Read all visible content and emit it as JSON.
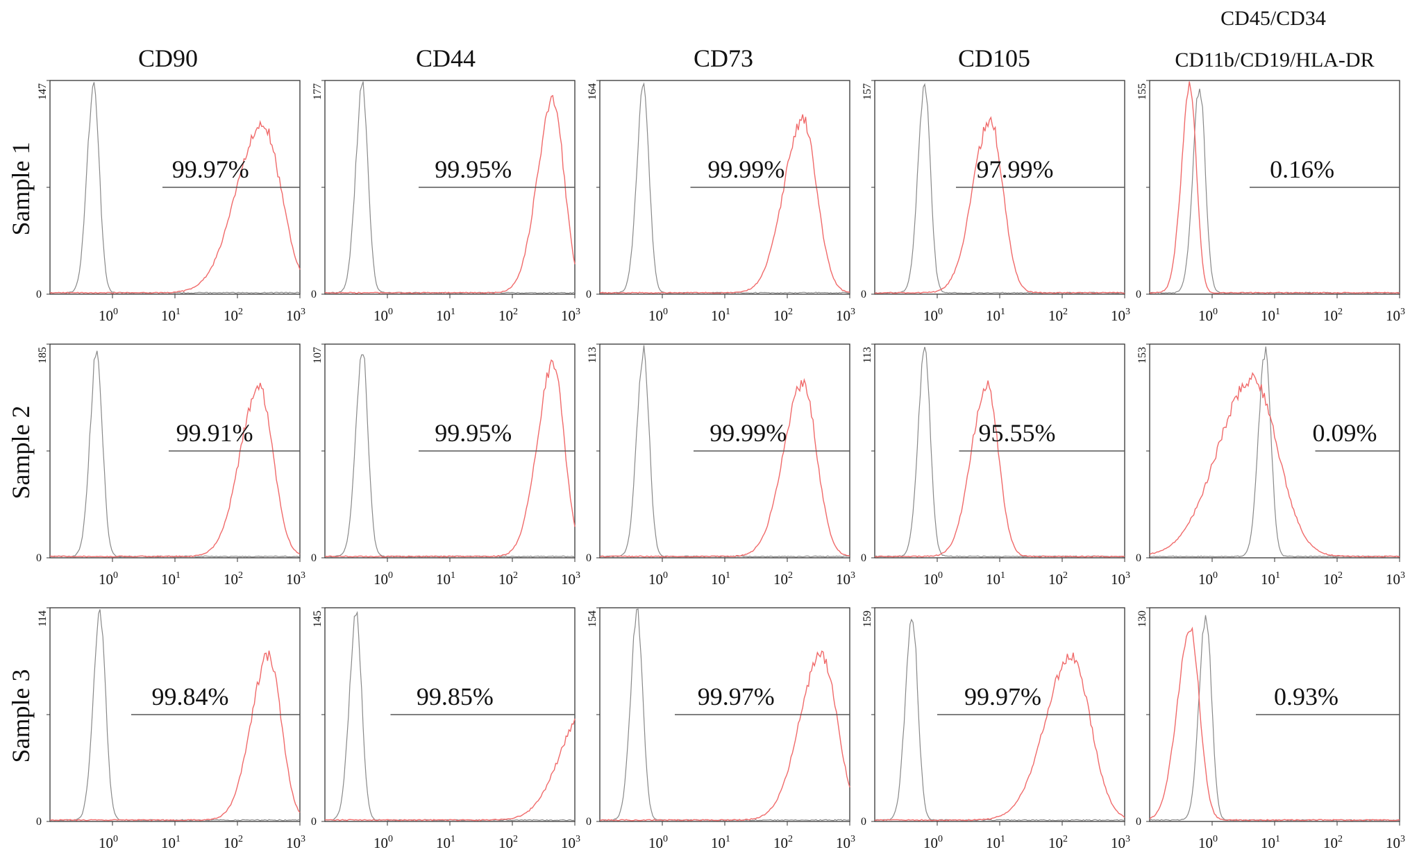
{
  "figure": {
    "column_titles": [
      "CD90",
      "CD44",
      "CD73",
      "CD105",
      [
        "CD45/CD34",
        "CD11b/CD19/HLA-DR"
      ]
    ],
    "row_labels": [
      "Sample 1",
      "Sample 2",
      "Sample 3"
    ],
    "colors": {
      "isotype_control": "#888888",
      "marker_stain": "#f06a6a",
      "gate_line": "#555555",
      "frame": "#333333"
    }
  },
  "chart_data": [
    {
      "type": "area",
      "row": "Sample 1",
      "column": "CD90",
      "ymax_label": "147",
      "yzero_label": "0",
      "x_scale": "log",
      "x_ticks": [
        "0",
        "1",
        "2",
        "3"
      ],
      "percent_positive": "99.97%",
      "control_peak_log10": -0.3,
      "stain_peak_log10": 2.4,
      "stain_width_log10": 0.3,
      "stain_height_frac": 0.82,
      "gate_start_log10": 0.8
    },
    {
      "type": "area",
      "row": "Sample 1",
      "column": "CD44",
      "ymax_label": "177",
      "yzero_label": "0",
      "x_scale": "log",
      "x_ticks": [
        "0",
        "1",
        "2",
        "3"
      ],
      "percent_positive": "99.95%",
      "control_peak_log10": -0.4,
      "stain_peak_log10": 2.65,
      "stain_width_log10": 0.18,
      "stain_height_frac": 0.93,
      "gate_start_log10": 0.5
    },
    {
      "type": "area",
      "row": "Sample 1",
      "column": "CD73",
      "ymax_label": "164",
      "yzero_label": "0",
      "x_scale": "log",
      "x_ticks": [
        "0",
        "1",
        "2",
        "3"
      ],
      "percent_positive": "99.99%",
      "control_peak_log10": -0.3,
      "stain_peak_log10": 2.25,
      "stain_width_log10": 0.22,
      "stain_height_frac": 0.84,
      "gate_start_log10": 0.45
    },
    {
      "type": "area",
      "row": "Sample 1",
      "column": "CD105",
      "ymax_label": "157",
      "yzero_label": "0",
      "x_scale": "log",
      "x_ticks": [
        "0",
        "1",
        "2",
        "3"
      ],
      "percent_positive": "97.99%",
      "control_peak_log10": -0.2,
      "stain_peak_log10": 0.85,
      "stain_width_log10": 0.2,
      "stain_height_frac": 0.84,
      "gate_start_log10": 0.3
    },
    {
      "type": "area",
      "row": "Sample 1",
      "column": "CD45/CD34/CD11b/CD19/HLA-DR",
      "ymax_label": "155",
      "yzero_label": "0",
      "x_scale": "log",
      "x_ticks": [
        "0",
        "1",
        "2",
        "3"
      ],
      "percent_positive": "0.16%",
      "control_peak_log10": -0.2,
      "stain_peak_log10": -0.35,
      "stain_width_log10": 0.1,
      "stain_height_frac": 1.0,
      "gate_start_log10": 0.6
    },
    {
      "type": "area",
      "row": "Sample 2",
      "column": "CD90",
      "ymax_label": "185",
      "yzero_label": "0",
      "x_scale": "log",
      "x_ticks": [
        "0",
        "1",
        "2",
        "3"
      ],
      "percent_positive": "99.91%",
      "control_peak_log10": -0.25,
      "stain_peak_log10": 2.35,
      "stain_width_log10": 0.22,
      "stain_height_frac": 0.82,
      "gate_start_log10": 0.9
    },
    {
      "type": "area",
      "row": "Sample 2",
      "column": "CD44",
      "ymax_label": "107",
      "yzero_label": "0",
      "x_scale": "log",
      "x_ticks": [
        "0",
        "1",
        "2",
        "3"
      ],
      "percent_positive": "99.95%",
      "control_peak_log10": -0.4,
      "stain_peak_log10": 2.65,
      "stain_width_log10": 0.18,
      "stain_height_frac": 0.93,
      "gate_start_log10": 0.5
    },
    {
      "type": "area",
      "row": "Sample 2",
      "column": "CD73",
      "ymax_label": "113",
      "yzero_label": "0",
      "x_scale": "log",
      "x_ticks": [
        "0",
        "1",
        "2",
        "3"
      ],
      "percent_positive": "99.99%",
      "control_peak_log10": -0.3,
      "stain_peak_log10": 2.25,
      "stain_width_log10": 0.22,
      "stain_height_frac": 0.84,
      "gate_start_log10": 0.5
    },
    {
      "type": "area",
      "row": "Sample 2",
      "column": "CD105",
      "ymax_label": "113",
      "yzero_label": "0",
      "x_scale": "log",
      "x_ticks": [
        "0",
        "1",
        "2",
        "3"
      ],
      "percent_positive": "95.55%",
      "control_peak_log10": -0.2,
      "stain_peak_log10": 0.8,
      "stain_width_log10": 0.18,
      "stain_height_frac": 0.84,
      "gate_start_log10": 0.35
    },
    {
      "type": "area",
      "row": "Sample 2",
      "column": "CD45/CD34/CD11b/CD19/HLA-DR",
      "ymax_label": "153",
      "yzero_label": "0",
      "x_scale": "log",
      "x_ticks": [
        "0",
        "1",
        "2",
        "3"
      ],
      "percent_positive": "0.09%",
      "control_peak_log10": 0.85,
      "stain_peak_log10": 0.65,
      "stain_width_log10": 0.4,
      "stain_height_frac": 0.86,
      "gate_start_log10": 1.65
    },
    {
      "type": "area",
      "row": "Sample 3",
      "column": "CD90",
      "ymax_label": "114",
      "yzero_label": "0",
      "x_scale": "log",
      "x_ticks": [
        "0",
        "1",
        "2",
        "3"
      ],
      "percent_positive": "99.84%",
      "control_peak_log10": -0.2,
      "stain_peak_log10": 2.5,
      "stain_width_log10": 0.2,
      "stain_height_frac": 0.8,
      "gate_start_log10": 0.3
    },
    {
      "type": "area",
      "row": "Sample 3",
      "column": "CD44",
      "ymax_label": "145",
      "yzero_label": "0",
      "x_scale": "log",
      "x_ticks": [
        "0",
        "1",
        "2",
        "3"
      ],
      "percent_positive": "99.85%",
      "control_peak_log10": -0.5,
      "stain_peak_log10": 3.2,
      "stain_width_log10": 0.3,
      "stain_height_frac": 0.55,
      "gate_start_log10": 0.05
    },
    {
      "type": "area",
      "row": "Sample 3",
      "column": "CD73",
      "ymax_label": "154",
      "yzero_label": "0",
      "x_scale": "log",
      "x_ticks": [
        "0",
        "1",
        "2",
        "3"
      ],
      "percent_positive": "99.97%",
      "control_peak_log10": -0.4,
      "stain_peak_log10": 2.55,
      "stain_width_log10": 0.25,
      "stain_height_frac": 0.8,
      "gate_start_log10": 0.2
    },
    {
      "type": "area",
      "row": "Sample 3",
      "column": "CD105",
      "ymax_label": "159",
      "yzero_label": "0",
      "x_scale": "log",
      "x_ticks": [
        "0",
        "1",
        "2",
        "3"
      ],
      "percent_positive": "99.97%",
      "control_peak_log10": -0.4,
      "stain_peak_log10": 2.15,
      "stain_width_log10": 0.3,
      "stain_height_frac": 0.8,
      "gate_start_log10": 0.0
    },
    {
      "type": "area",
      "row": "Sample 3",
      "column": "CD45/CD34/CD11b/CD19/HLA-DR",
      "ymax_label": "130",
      "yzero_label": "0",
      "x_scale": "log",
      "x_ticks": [
        "0",
        "1",
        "2",
        "3"
      ],
      "percent_positive": "0.93%",
      "control_peak_log10": -0.1,
      "stain_peak_log10": -0.35,
      "stain_width_log10": 0.15,
      "stain_height_frac": 0.92,
      "gate_start_log10": 0.7
    }
  ]
}
